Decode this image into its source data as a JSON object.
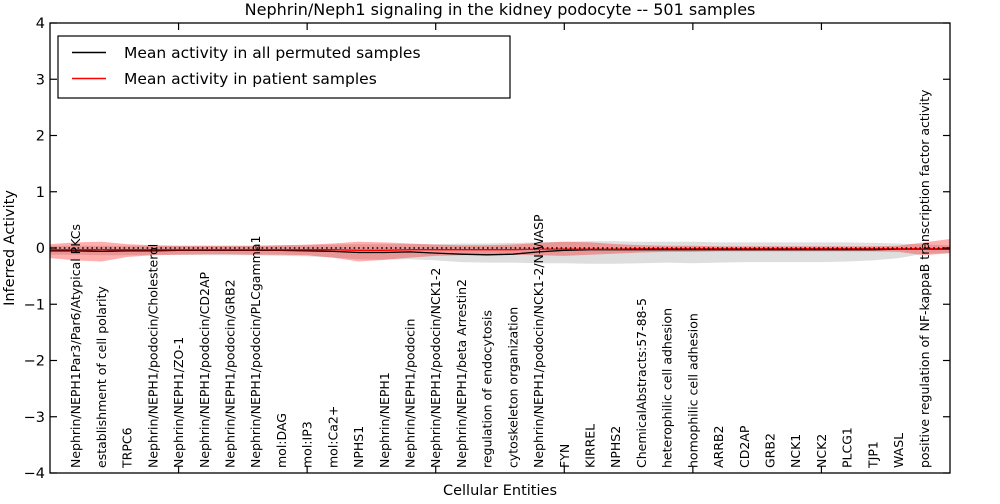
{
  "title": "Nephrin/Neph1 signaling in the kidney podocyte -- 501 samples",
  "axes": {
    "xlabel": "Cellular Entities",
    "ylabel": "Inferred Activity"
  },
  "legend": {
    "items": [
      {
        "label": "Mean activity in all permuted samples",
        "color": "#000000"
      },
      {
        "label": "Mean activity in patient samples",
        "color": "#ff0000"
      }
    ]
  },
  "chart_data": {
    "type": "line",
    "title": "Nephrin/Neph1 signaling in the kidney podocyte -- 501 samples",
    "xlabel": "Cellular Entities",
    "ylabel": "Inferred Activity",
    "ylim": [
      -4,
      4
    ],
    "grid": false,
    "legend_position": "upper left",
    "ytick_values": [
      4,
      3,
      2,
      1,
      0,
      -1,
      -2,
      -3,
      -4
    ],
    "ytick_labels": [
      "4",
      "3",
      "2",
      "1",
      "0",
      "−1",
      "−2",
      "−3",
      "−4"
    ],
    "xtick_positions": [
      5,
      10,
      15,
      20,
      25,
      30
    ],
    "zero_reference_line": {
      "y": 0,
      "style": "dotted",
      "color": "#000000"
    },
    "categories": [
      "Nephrin/NEPH1Par3/Par6/Atypical PKCs",
      "establishment of cell polarity",
      "TRPC6",
      "Nephrin/NEPH1/podocin/Cholesterol",
      "Nephrin/NEPH1/ZO-1",
      "Nephrin/NEPH1/podocin/CD2AP",
      "Nephrin/NEPH1/podocin/GRB2",
      "Nephrin/NEPH1/podocin/PLCgamma1",
      "mol:DAG",
      "mol:IP3",
      "mol:Ca2+",
      "NPHS1",
      "Nephrin/NEPH1",
      "Nephrin/NEPH1/podocin",
      "Nephrin/NEPH1/podocin/NCK1-2",
      "Nephrin/NEPH1/beta Arrestin2",
      "regulation of endocytosis",
      "cytoskeleton organization",
      "Nephrin/NEPH1/podocin/NCK1-2/N-WASP",
      "FYN",
      "KIRREL",
      "NPHS2",
      "ChemicalAbstracts:57-88-5",
      "heterophilic cell adhesion",
      "homophilic cell adhesion",
      "ARRB2",
      "CD2AP",
      "GRB2",
      "NCK1",
      "NCK2",
      "PLCG1",
      "TJP1",
      "WASL",
      "positive regulation of NF-kappaB transcription factor activity"
    ],
    "series": [
      {
        "name": "Mean activity in all permuted samples",
        "key": "permuted",
        "line_color": "#000000",
        "band_color": "#000000",
        "band_opacity": 0.13,
        "mean": [
          -0.05,
          -0.06,
          -0.05,
          -0.05,
          -0.04,
          -0.04,
          -0.04,
          -0.04,
          -0.04,
          -0.05,
          -0.06,
          -0.08,
          -0.08,
          -0.07,
          -0.09,
          -0.11,
          -0.12,
          -0.11,
          -0.07,
          -0.04,
          -0.03,
          -0.03,
          -0.03,
          -0.03,
          -0.03,
          -0.03,
          -0.03,
          -0.03,
          -0.03,
          -0.03,
          -0.03,
          -0.03,
          -0.02,
          -0.02
        ],
        "upper": [
          0.04,
          0.04,
          0.04,
          0.04,
          0.04,
          0.04,
          0.04,
          0.04,
          0.05,
          0.05,
          0.06,
          0.07,
          0.07,
          0.07,
          0.07,
          0.08,
          0.08,
          0.09,
          0.1,
          0.11,
          0.12,
          0.12,
          0.11,
          0.11,
          0.11,
          0.1,
          0.1,
          0.1,
          0.1,
          0.1,
          0.1,
          0.09,
          0.08,
          0.06
        ],
        "lower": [
          -0.12,
          -0.13,
          -0.13,
          -0.12,
          -0.12,
          -0.13,
          -0.13,
          -0.13,
          -0.14,
          -0.15,
          -0.17,
          -0.2,
          -0.21,
          -0.2,
          -0.22,
          -0.25,
          -0.26,
          -0.26,
          -0.27,
          -0.27,
          -0.28,
          -0.28,
          -0.27,
          -0.26,
          -0.27,
          -0.26,
          -0.25,
          -0.25,
          -0.25,
          -0.25,
          -0.24,
          -0.22,
          -0.18,
          -0.1
        ],
        "edge_left": {
          "mean": -0.05,
          "upper": 0.04,
          "lower": -0.12
        },
        "edge_right": {
          "mean": -0.02,
          "upper": 0.05,
          "lower": -0.09
        }
      },
      {
        "name": "Mean activity in patient samples",
        "key": "patient",
        "line_color": "#ff0000",
        "band_color": "#ff0000",
        "band_opacity": 0.32,
        "mean": [
          -0.03,
          -0.03,
          -0.03,
          -0.03,
          -0.03,
          -0.03,
          -0.03,
          -0.03,
          -0.03,
          -0.03,
          -0.03,
          -0.04,
          -0.04,
          -0.03,
          -0.03,
          -0.03,
          -0.03,
          -0.03,
          -0.02,
          -0.02,
          -0.02,
          -0.02,
          -0.01,
          -0.01,
          -0.01,
          -0.01,
          -0.01,
          -0.01,
          -0.01,
          -0.01,
          -0.01,
          -0.01,
          -0.01,
          -0.01
        ],
        "upper": [
          0.1,
          0.11,
          0.07,
          0.05,
          0.04,
          0.04,
          0.04,
          0.04,
          0.05,
          0.06,
          0.08,
          0.11,
          0.1,
          0.08,
          0.06,
          0.05,
          0.05,
          0.06,
          0.09,
          0.11,
          0.1,
          0.07,
          0.05,
          0.04,
          0.04,
          0.03,
          0.03,
          0.03,
          0.03,
          0.03,
          0.03,
          0.03,
          0.04,
          0.1
        ],
        "lower": [
          -0.22,
          -0.24,
          -0.16,
          -0.13,
          -0.12,
          -0.11,
          -0.11,
          -0.12,
          -0.12,
          -0.13,
          -0.17,
          -0.24,
          -0.21,
          -0.17,
          -0.14,
          -0.13,
          -0.12,
          -0.12,
          -0.13,
          -0.14,
          -0.12,
          -0.1,
          -0.08,
          -0.07,
          -0.07,
          -0.06,
          -0.06,
          -0.06,
          -0.06,
          -0.06,
          -0.06,
          -0.06,
          -0.07,
          -0.13
        ],
        "edge_left": {
          "mean": -0.03,
          "upper": 0.07,
          "lower": -0.18
        },
        "edge_right": {
          "mean": -0.01,
          "upper": 0.16,
          "lower": -0.09
        }
      }
    ]
  }
}
